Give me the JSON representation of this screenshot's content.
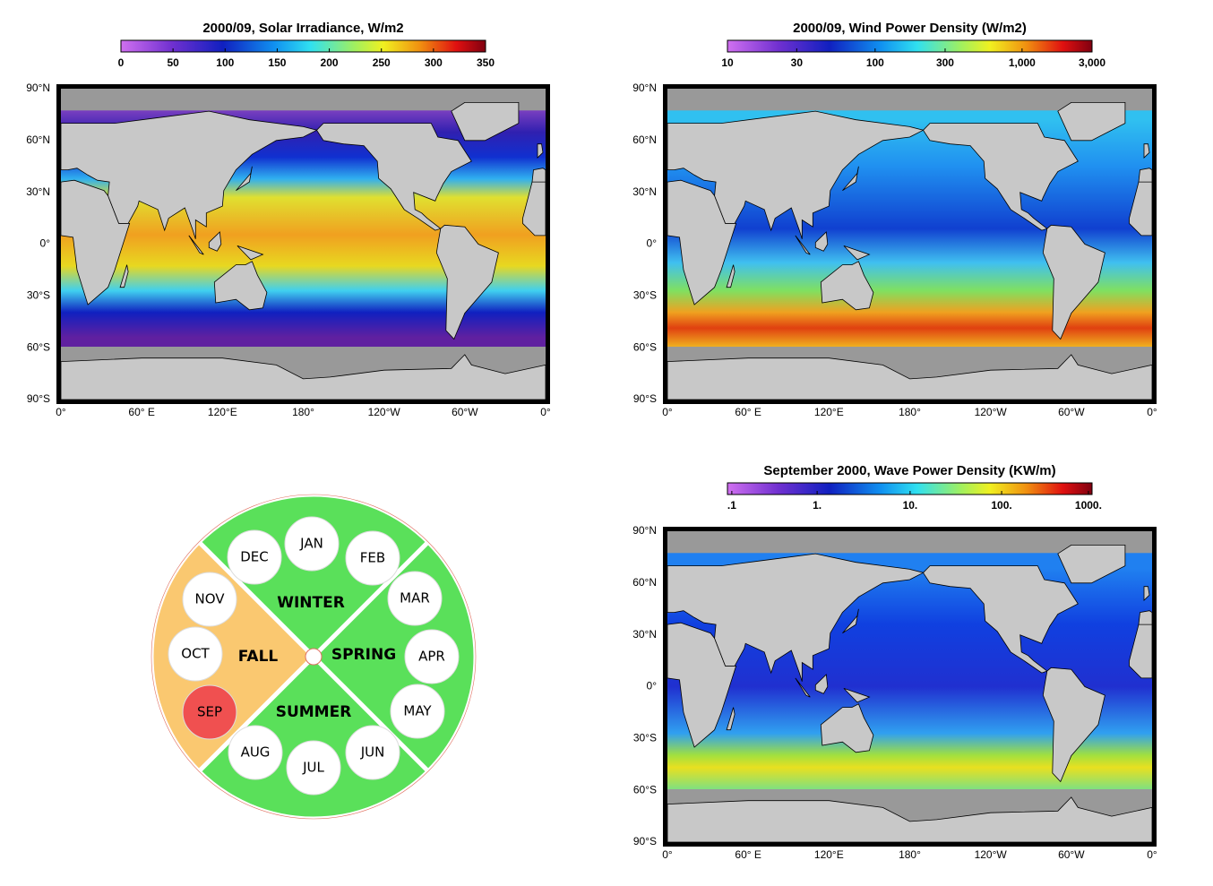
{
  "panels": [
    {
      "title": "2000/09, Solar Irradiance, W/m2",
      "colorbar_labels": [
        "0",
        "50",
        "100",
        "150",
        "200",
        "250",
        "300",
        "350"
      ]
    },
    {
      "title": "2000/09, Wind Power Density (W/m2)",
      "colorbar_labels": [
        "10",
        "30",
        "100",
        "300",
        "1,000",
        "3,000"
      ]
    },
    {
      "title": "September 2000, Wave Power Density (KW/m)",
      "colorbar_labels": [
        ".1",
        "1.",
        "10.",
        "100.",
        "1000."
      ]
    }
  ],
  "axes": {
    "lat_labels": [
      "90°N",
      "60°N",
      "30°N",
      "0°",
      "30°S",
      "60°S",
      "90°S"
    ],
    "lon_labels": [
      "0°",
      "60° E",
      "120°E",
      "180°",
      "120°W",
      "60°W",
      "0°"
    ]
  },
  "season_wheel": {
    "seasons": [
      "WINTER",
      "SPRING",
      "SUMMER",
      "FALL"
    ],
    "months": [
      "JAN",
      "FEB",
      "MAR",
      "APR",
      "MAY",
      "JUN",
      "JUL",
      "AUG",
      "SEP",
      "OCT",
      "NOV",
      "DEC"
    ]
  }
}
